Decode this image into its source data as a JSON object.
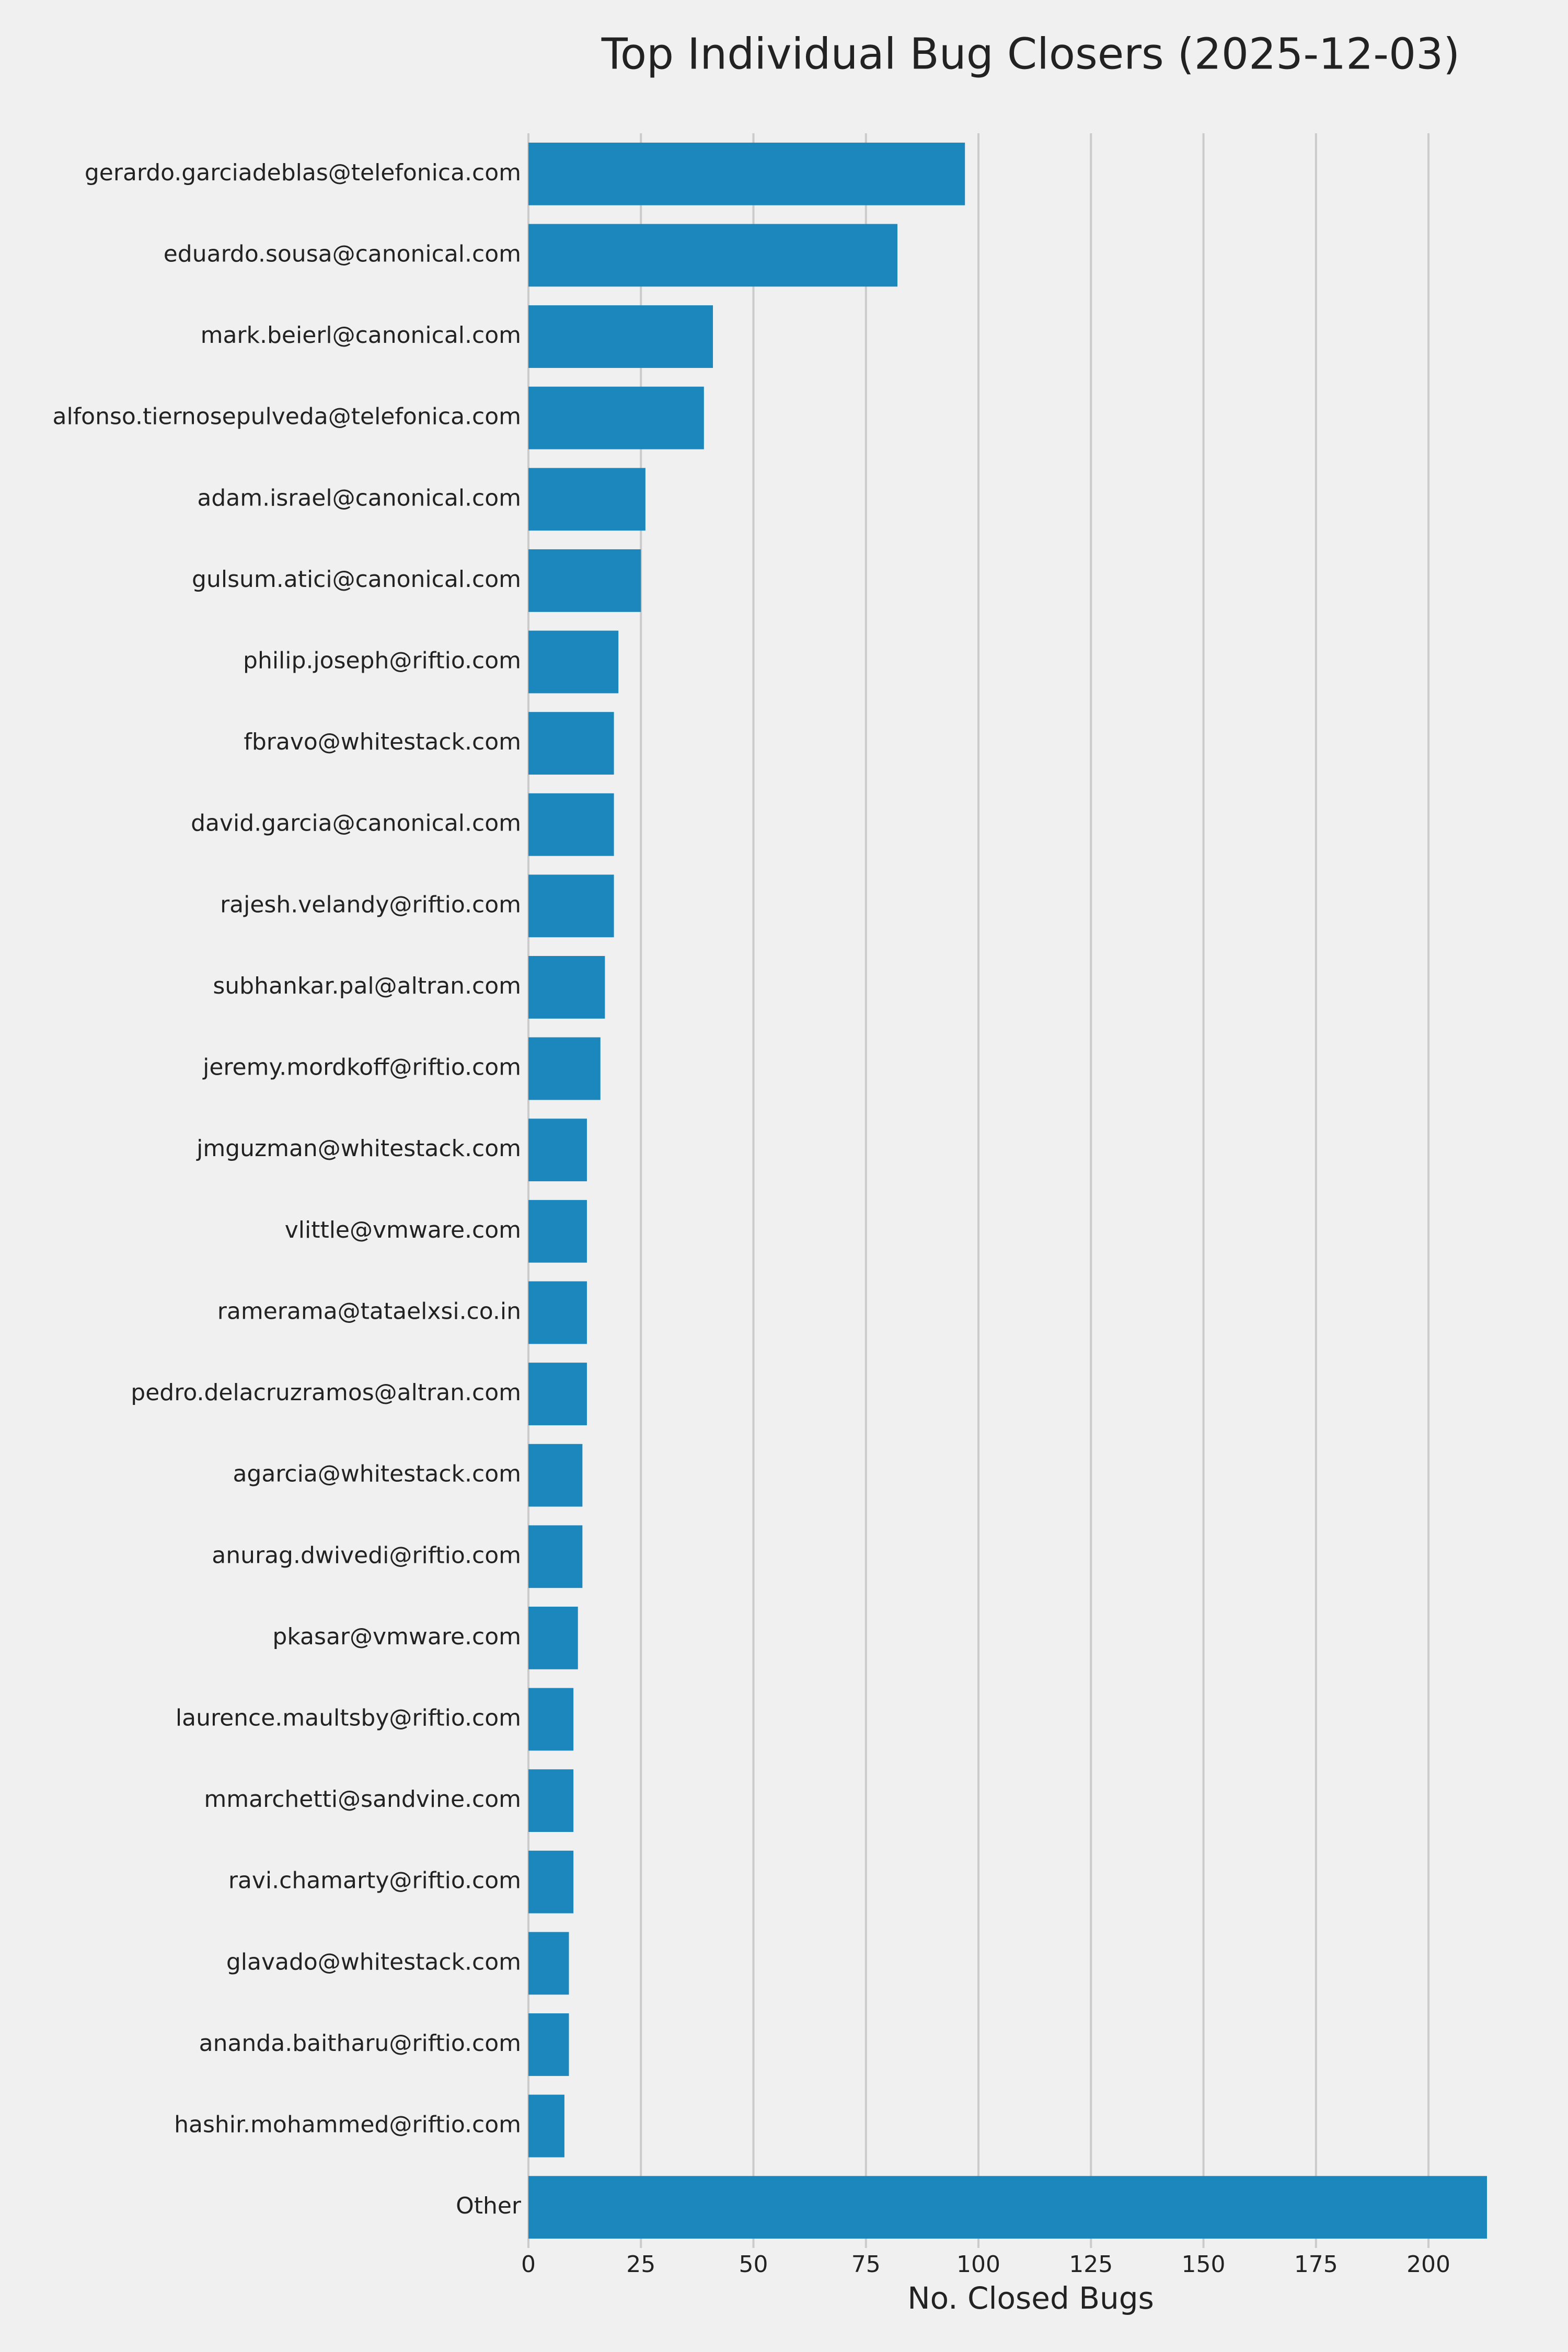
{
  "chart_data": {
    "type": "barh",
    "title": "Top Individual Bug Closers (2025-12-03)",
    "x_label": "No. Closed Bugs",
    "categories": [
      "gerardo.garciadeblas@telefonica.com",
      "eduardo.sousa@canonical.com",
      "mark.beierl@canonical.com",
      "alfonso.tiernosepulveda@telefonica.com",
      "adam.israel@canonical.com",
      "gulsum.atici@canonical.com",
      "philip.joseph@riftio.com",
      "fbravo@whitestack.com",
      "david.garcia@canonical.com",
      "rajesh.velandy@riftio.com",
      "subhankar.pal@altran.com",
      "jeremy.mordkoff@riftio.com",
      "jmguzman@whitestack.com",
      "vlittle@vmware.com",
      "ramerama@tataelxsi.co.in",
      "pedro.delacruzramos@altran.com",
      "agarcia@whitestack.com",
      "anurag.dwivedi@riftio.com",
      "pkasar@vmware.com",
      "laurence.maultsby@riftio.com",
      "mmarchetti@sandvine.com",
      "ravi.chamarty@riftio.com",
      "glavado@whitestack.com",
      "ananda.baitharu@riftio.com",
      "hashir.mohammed@riftio.com",
      "Other"
    ],
    "values": [
      97,
      82,
      41,
      39,
      26,
      25,
      20,
      19,
      19,
      19,
      17,
      16,
      13,
      13,
      13,
      13,
      12,
      12,
      11,
      10,
      10,
      10,
      9,
      9,
      8,
      213
    ],
    "color": "#1b87bc",
    "xlim": [
      0,
      213
    ],
    "xticks": [
      0,
      25,
      50,
      75,
      100,
      125,
      150,
      175,
      200
    ],
    "grid": true
  }
}
